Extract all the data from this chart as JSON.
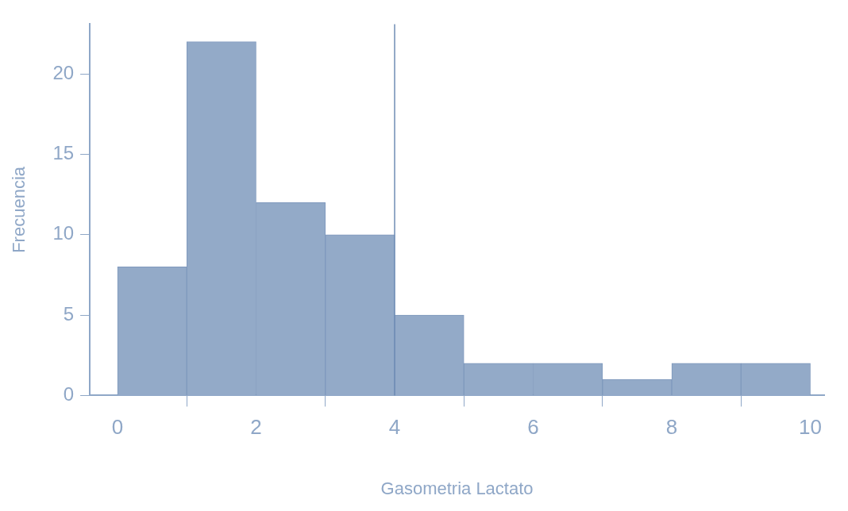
{
  "chart_data": {
    "type": "histogram",
    "xlabel": "Gasometria Lactato",
    "ylabel": "Frecuencia",
    "bins": [
      0,
      1,
      2,
      3,
      4,
      5,
      6,
      7,
      8,
      9,
      10
    ],
    "values": [
      8,
      22,
      12,
      10,
      5,
      2,
      2,
      1,
      2,
      2
    ],
    "color": "#93aac8",
    "xlim": [
      -0.4,
      10.2
    ],
    "xticks": [
      0,
      2,
      4,
      6,
      8,
      10
    ],
    "ylim": [
      0,
      23.1
    ],
    "yticks": [
      0,
      5,
      10,
      15,
      20
    ],
    "ref_lines": [
      {
        "axis": "x",
        "value": 4,
        "color": "#6f8db5"
      }
    ],
    "grid": false,
    "legend": false
  }
}
